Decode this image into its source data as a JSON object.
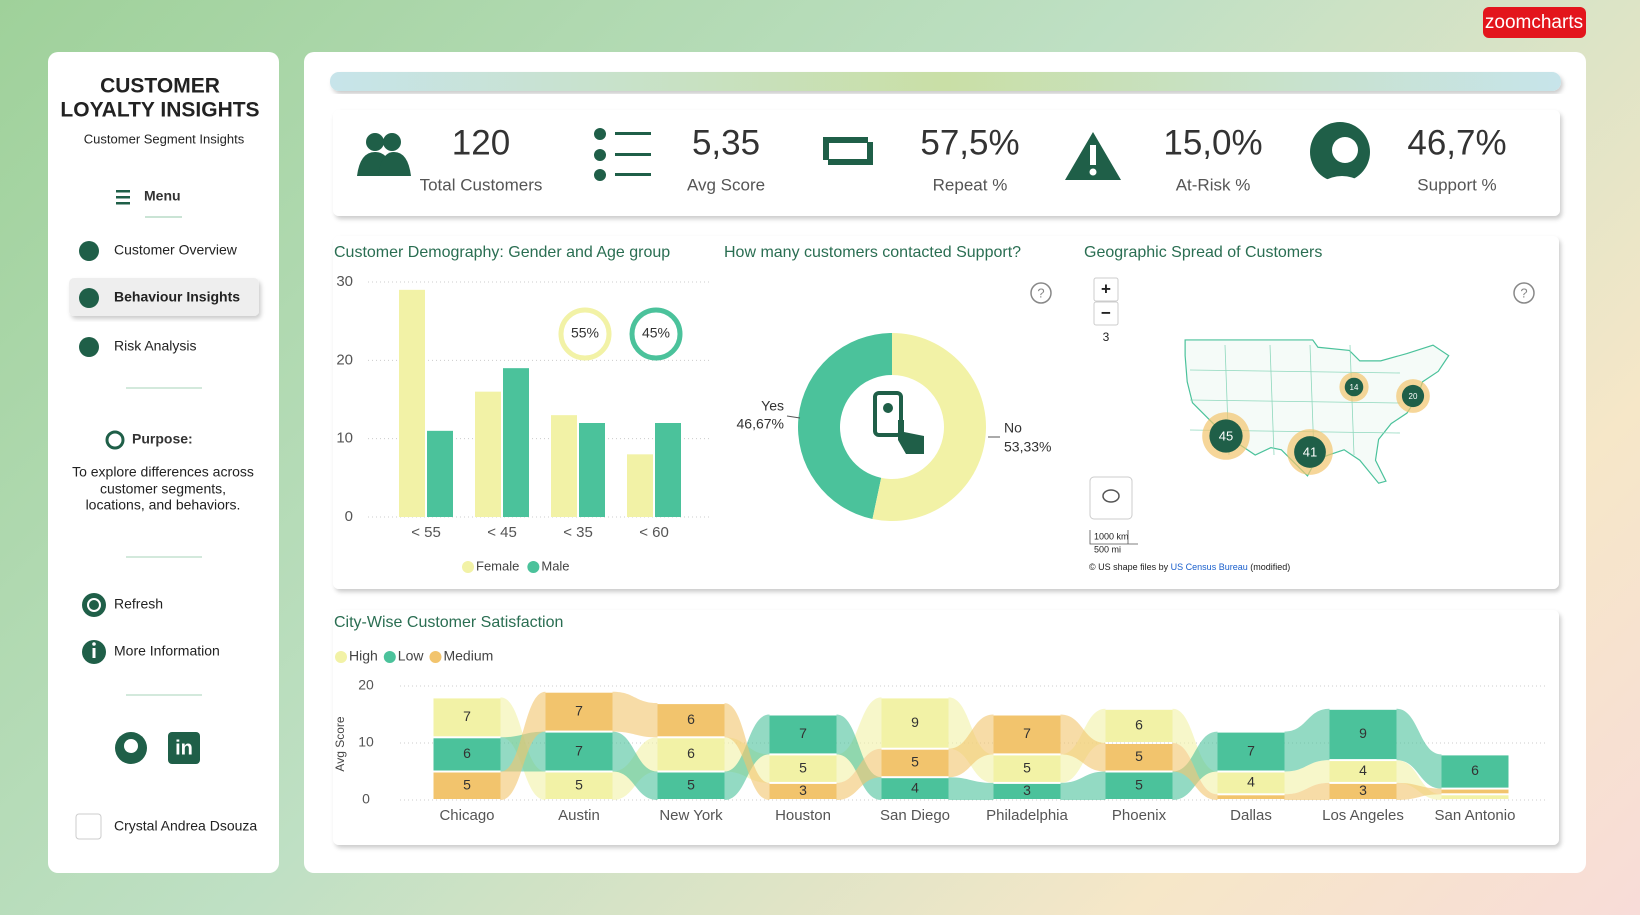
{
  "badge": "zoomcharts",
  "sidebar": {
    "title": [
      "CUSTOMER",
      "LOYALTY INSIGHTS"
    ],
    "subtitle": "Customer Segment Insights",
    "menu": "Menu",
    "nav": [
      "Customer Overview",
      "Behaviour Insights",
      "Risk Analysis"
    ],
    "purpose_title": "Purpose:",
    "purpose_text": [
      "To explore differences across",
      "customer segments,",
      "locations, and behaviors."
    ],
    "actions": [
      "Refresh",
      "More Information"
    ],
    "author": "Crystal Andrea Dsouza"
  },
  "kpis": [
    {
      "value": "120",
      "label": "Total Customers"
    },
    {
      "value": "5,35",
      "label": "Avg Score"
    },
    {
      "value": "57,5%",
      "label": "Repeat %"
    },
    {
      "value": "15,0%",
      "label": "At-Risk %"
    },
    {
      "value": "46,7%",
      "label": "Support %"
    }
  ],
  "chart_data": [
    {
      "type": "bar",
      "title": "Customer Demography: Gender and Age group",
      "categories": [
        "< 55",
        "< 45",
        "< 35",
        "< 60"
      ],
      "series": [
        {
          "name": "Female",
          "color": "#f2f2a6",
          "values": [
            29,
            16,
            13,
            8
          ]
        },
        {
          "name": "Male",
          "color": "#4bc29b",
          "values": [
            11,
            19,
            12,
            12
          ]
        }
      ],
      "ylim": [
        0,
        30
      ],
      "yticks": [
        0,
        10,
        20,
        30
      ],
      "grid": true,
      "annotations": [
        "55%",
        "45%"
      ]
    },
    {
      "type": "donut",
      "title": "How many customers contacted Support?",
      "categories": [
        "Yes",
        "No"
      ],
      "values": [
        46.67,
        53.33
      ],
      "value_labels": [
        "46,67%",
        "53,33%"
      ],
      "colors": [
        "#4bc29b",
        "#f2f2a6"
      ],
      "help": "?"
    },
    {
      "type": "map",
      "title": "Geographic Spread of Customers",
      "clusters": [
        45,
        41,
        14,
        20
      ],
      "zoom_controls": [
        "+",
        "−"
      ],
      "zoom_level": "3",
      "scale_labels": [
        "1000 km",
        "500 mi"
      ],
      "attribution": [
        "© US shape files by ",
        "US Census Bureau",
        " (modified)"
      ],
      "help": "?"
    },
    {
      "type": "ribbon",
      "title": "City-Wise Customer Satisfaction",
      "categories": [
        "Chicago",
        "Austin",
        "New York",
        "Houston",
        "San Diego",
        "Philadelphia",
        "Phoenix",
        "Dallas",
        "Los Angeles",
        "San Antonio"
      ],
      "series": [
        {
          "name": "High",
          "color": "#f2f2a6",
          "values": [
            7,
            5,
            6,
            5,
            9,
            5,
            6,
            4,
            4,
            1
          ]
        },
        {
          "name": "Low",
          "color": "#4bc29b",
          "values": [
            6,
            7,
            5,
            7,
            4,
            3,
            5,
            7,
            9,
            6
          ]
        },
        {
          "name": "Medium",
          "color": "#f2c46d",
          "values": [
            5,
            7,
            6,
            3,
            5,
            7,
            5,
            1,
            3,
            1
          ]
        }
      ],
      "ylim": [
        0,
        20
      ],
      "yticks": [
        0,
        10,
        20
      ],
      "ylabel": "Avg Score",
      "grid": true
    }
  ]
}
